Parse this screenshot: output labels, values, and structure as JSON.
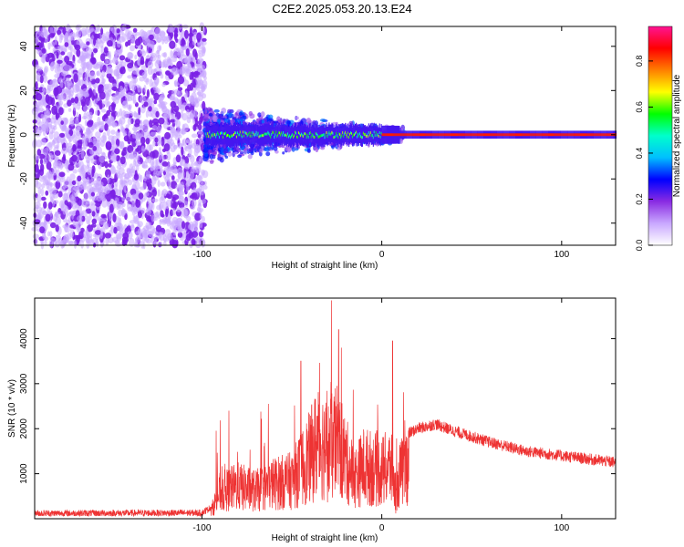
{
  "title": "C2E2.2025.053.20.13.E24",
  "chart_data": [
    {
      "type": "heatmap",
      "panel": "spectrogram",
      "xlabel": "Height of straight line (km)",
      "ylabel": "Frequency (Hz)",
      "xlim": [
        -193,
        130
      ],
      "ylim": [
        -50,
        49
      ],
      "xticks": [
        -100,
        0,
        100
      ],
      "xtick_labels": [
        "-100",
        "0",
        "100"
      ],
      "yticks": [
        -40,
        -20,
        0,
        20,
        40
      ],
      "ytick_labels": [
        "-40",
        "-20",
        "0",
        "20",
        "40"
      ],
      "colorbar": {
        "label": "Normalized spectral amplitude",
        "range": [
          0,
          0.95
        ],
        "ticks": [
          0.0,
          0.2,
          0.4,
          0.6,
          0.8
        ],
        "tick_labels": [
          "0.0",
          "0.2",
          "0.4",
          "0.6",
          "0.8"
        ],
        "colormap": [
          "#ffffff",
          "#c9a8ff",
          "#8a2be2",
          "#0000ff",
          "#00bfff",
          "#00ffcc",
          "#00ff00",
          "#ffff00",
          "#ff7f00",
          "#ff0000",
          "#ff1493"
        ]
      },
      "regions": [
        {
          "x_range": [
            -193,
            -98
          ],
          "description_value": "noise",
          "amplitude": 0.1,
          "freq_range": [
            -50,
            49
          ]
        },
        {
          "x_range": [
            -98,
            130
          ],
          "freq_center": 0,
          "freq_halfwidth_hz": 3,
          "amplitude_near": [
            0.45,
            0.9
          ]
        }
      ]
    },
    {
      "type": "line",
      "panel": "snr",
      "xlabel": "Height of straight line (km)",
      "ylabel": "SNR (10 * v/v)",
      "xlim": [
        -193,
        130
      ],
      "ylim": [
        0,
        4900
      ],
      "xticks": [
        -100,
        0,
        100
      ],
      "xtick_labels": [
        "-100",
        "0",
        "100"
      ],
      "yticks": [
        1000,
        2000,
        3000,
        4000
      ],
      "ytick_labels": [
        "1000",
        "2000",
        "3000",
        "4000"
      ],
      "color": "#ee3333",
      "envelope": {
        "x": [
          -193,
          -100,
          -95,
          -90,
          -80,
          -70,
          -60,
          -50,
          -40,
          -35,
          -30,
          -25,
          -20,
          -15,
          -10,
          -5,
          0,
          5,
          8,
          10,
          15,
          20,
          30,
          40,
          60,
          80,
          100,
          130
        ],
        "y": [
          120,
          130,
          250,
          900,
          1100,
          950,
          1200,
          1300,
          2100,
          2700,
          2300,
          2600,
          2000,
          1400,
          1800,
          1700,
          1600,
          1800,
          700,
          1500,
          1900,
          2000,
          2100,
          1950,
          1700,
          1500,
          1400,
          1250
        ]
      },
      "peaks": [
        {
          "x": -28,
          "y": 4850
        },
        {
          "x": -24,
          "y": 4200
        },
        {
          "x": -45,
          "y": 3500
        },
        {
          "x": 6,
          "y": 3950
        },
        {
          "x": -85,
          "y": 2400
        }
      ]
    }
  ]
}
